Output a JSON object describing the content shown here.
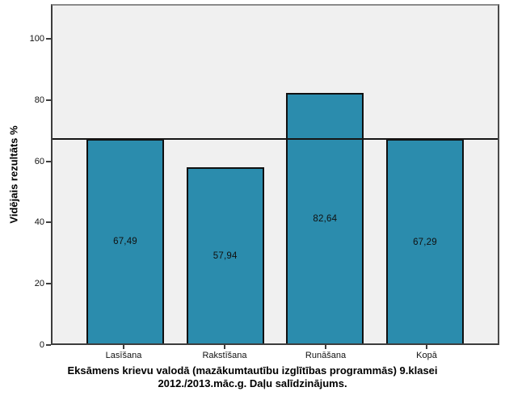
{
  "figure": {
    "background": "#ffffff",
    "plot_background": "#f0f0f0",
    "frame_color": "#3d3d3d"
  },
  "chart_data": {
    "type": "bar",
    "categories": [
      "Lasīšana",
      "Rakstīšana",
      "Runāšana",
      "Kopā"
    ],
    "values": [
      67.49,
      57.94,
      82.64,
      67.29
    ],
    "value_labels": [
      "67,49",
      "57,94",
      "82,64",
      "67,29"
    ],
    "bar_color": "#2b8cad",
    "bar_border_color": "#101010",
    "ylabel": "Vidējais rezultāts %",
    "xlabel": "",
    "yticks": [
      0,
      20,
      40,
      60,
      80,
      100
    ],
    "ylim": [
      0,
      111.3
    ],
    "reference_line": 67.49,
    "reference_line_color": "#161616",
    "grid": false,
    "legend": false,
    "title_position": "bottom",
    "title_line1": "Eksāmens krievu valodā (mazākumtautību izglītības programmās) 9.klasei",
    "title_line2": "2012./2013.māc.g. Daļu salīdzinājums."
  }
}
